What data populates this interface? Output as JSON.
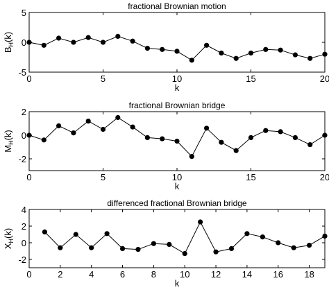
{
  "chart_data": [
    {
      "type": "line",
      "title": "fractional Brownian motion",
      "xlabel": "k",
      "ylabel": "B_H(k)",
      "xlim": [
        0,
        20
      ],
      "ylim": [
        -5,
        5
      ],
      "xticks": [
        0,
        5,
        10,
        15,
        20
      ],
      "yticks": [
        -5,
        0,
        5
      ],
      "grid": false,
      "series": [
        {
          "x": [
            0,
            1,
            2,
            3,
            4,
            5,
            6,
            7,
            8,
            9,
            10,
            11,
            12,
            13,
            14,
            15,
            16,
            17,
            18,
            19,
            20
          ],
          "values": [
            0,
            -0.5,
            0.7,
            0,
            0.8,
            0,
            1,
            0.2,
            -1,
            -1.2,
            -1.5,
            -3,
            -0.5,
            -1.8,
            -2.7,
            -1.8,
            -1.2,
            -1.3,
            -2.1,
            -2.7,
            -2
          ]
        }
      ]
    },
    {
      "type": "line",
      "title": "fractional Brownian bridge",
      "xlabel": "k",
      "ylabel": "M_H(k)",
      "xlim": [
        0,
        20
      ],
      "ylim": [
        -3,
        2
      ],
      "xticks": [
        0,
        5,
        10,
        15,
        20
      ],
      "yticks": [
        -2,
        0,
        2
      ],
      "grid": false,
      "series": [
        {
          "x": [
            0,
            1,
            2,
            3,
            4,
            5,
            6,
            7,
            8,
            9,
            10,
            11,
            12,
            13,
            14,
            15,
            16,
            17,
            18,
            19,
            20
          ],
          "values": [
            0,
            -0.4,
            0.8,
            0.2,
            1.2,
            0.5,
            1.5,
            0.7,
            -0.2,
            -0.3,
            -0.5,
            -1.8,
            0.6,
            -0.6,
            -1.3,
            -0.2,
            0.4,
            0.3,
            -0.2,
            -0.8,
            0
          ]
        }
      ]
    },
    {
      "type": "line",
      "title": "differenced fractional Brownian bridge",
      "xlabel": "k",
      "ylabel": "X_H(k)",
      "xlim": [
        0,
        19
      ],
      "ylim": [
        -3,
        4
      ],
      "xticks": [
        0,
        2,
        4,
        6,
        8,
        10,
        12,
        14,
        16,
        18
      ],
      "yticks": [
        -2,
        0,
        2,
        4
      ],
      "grid": false,
      "series": [
        {
          "x": [
            1,
            2,
            3,
            4,
            5,
            6,
            7,
            8,
            9,
            10,
            11,
            12,
            13,
            14,
            15,
            16,
            17,
            18,
            19
          ],
          "values": [
            1.3,
            -0.6,
            1,
            -0.6,
            1.1,
            -0.7,
            -0.8,
            -0.1,
            -0.2,
            -1.3,
            2.5,
            -1.1,
            -0.7,
            1.1,
            0.7,
            0,
            -0.6,
            -0.3,
            0.8
          ]
        }
      ]
    }
  ]
}
